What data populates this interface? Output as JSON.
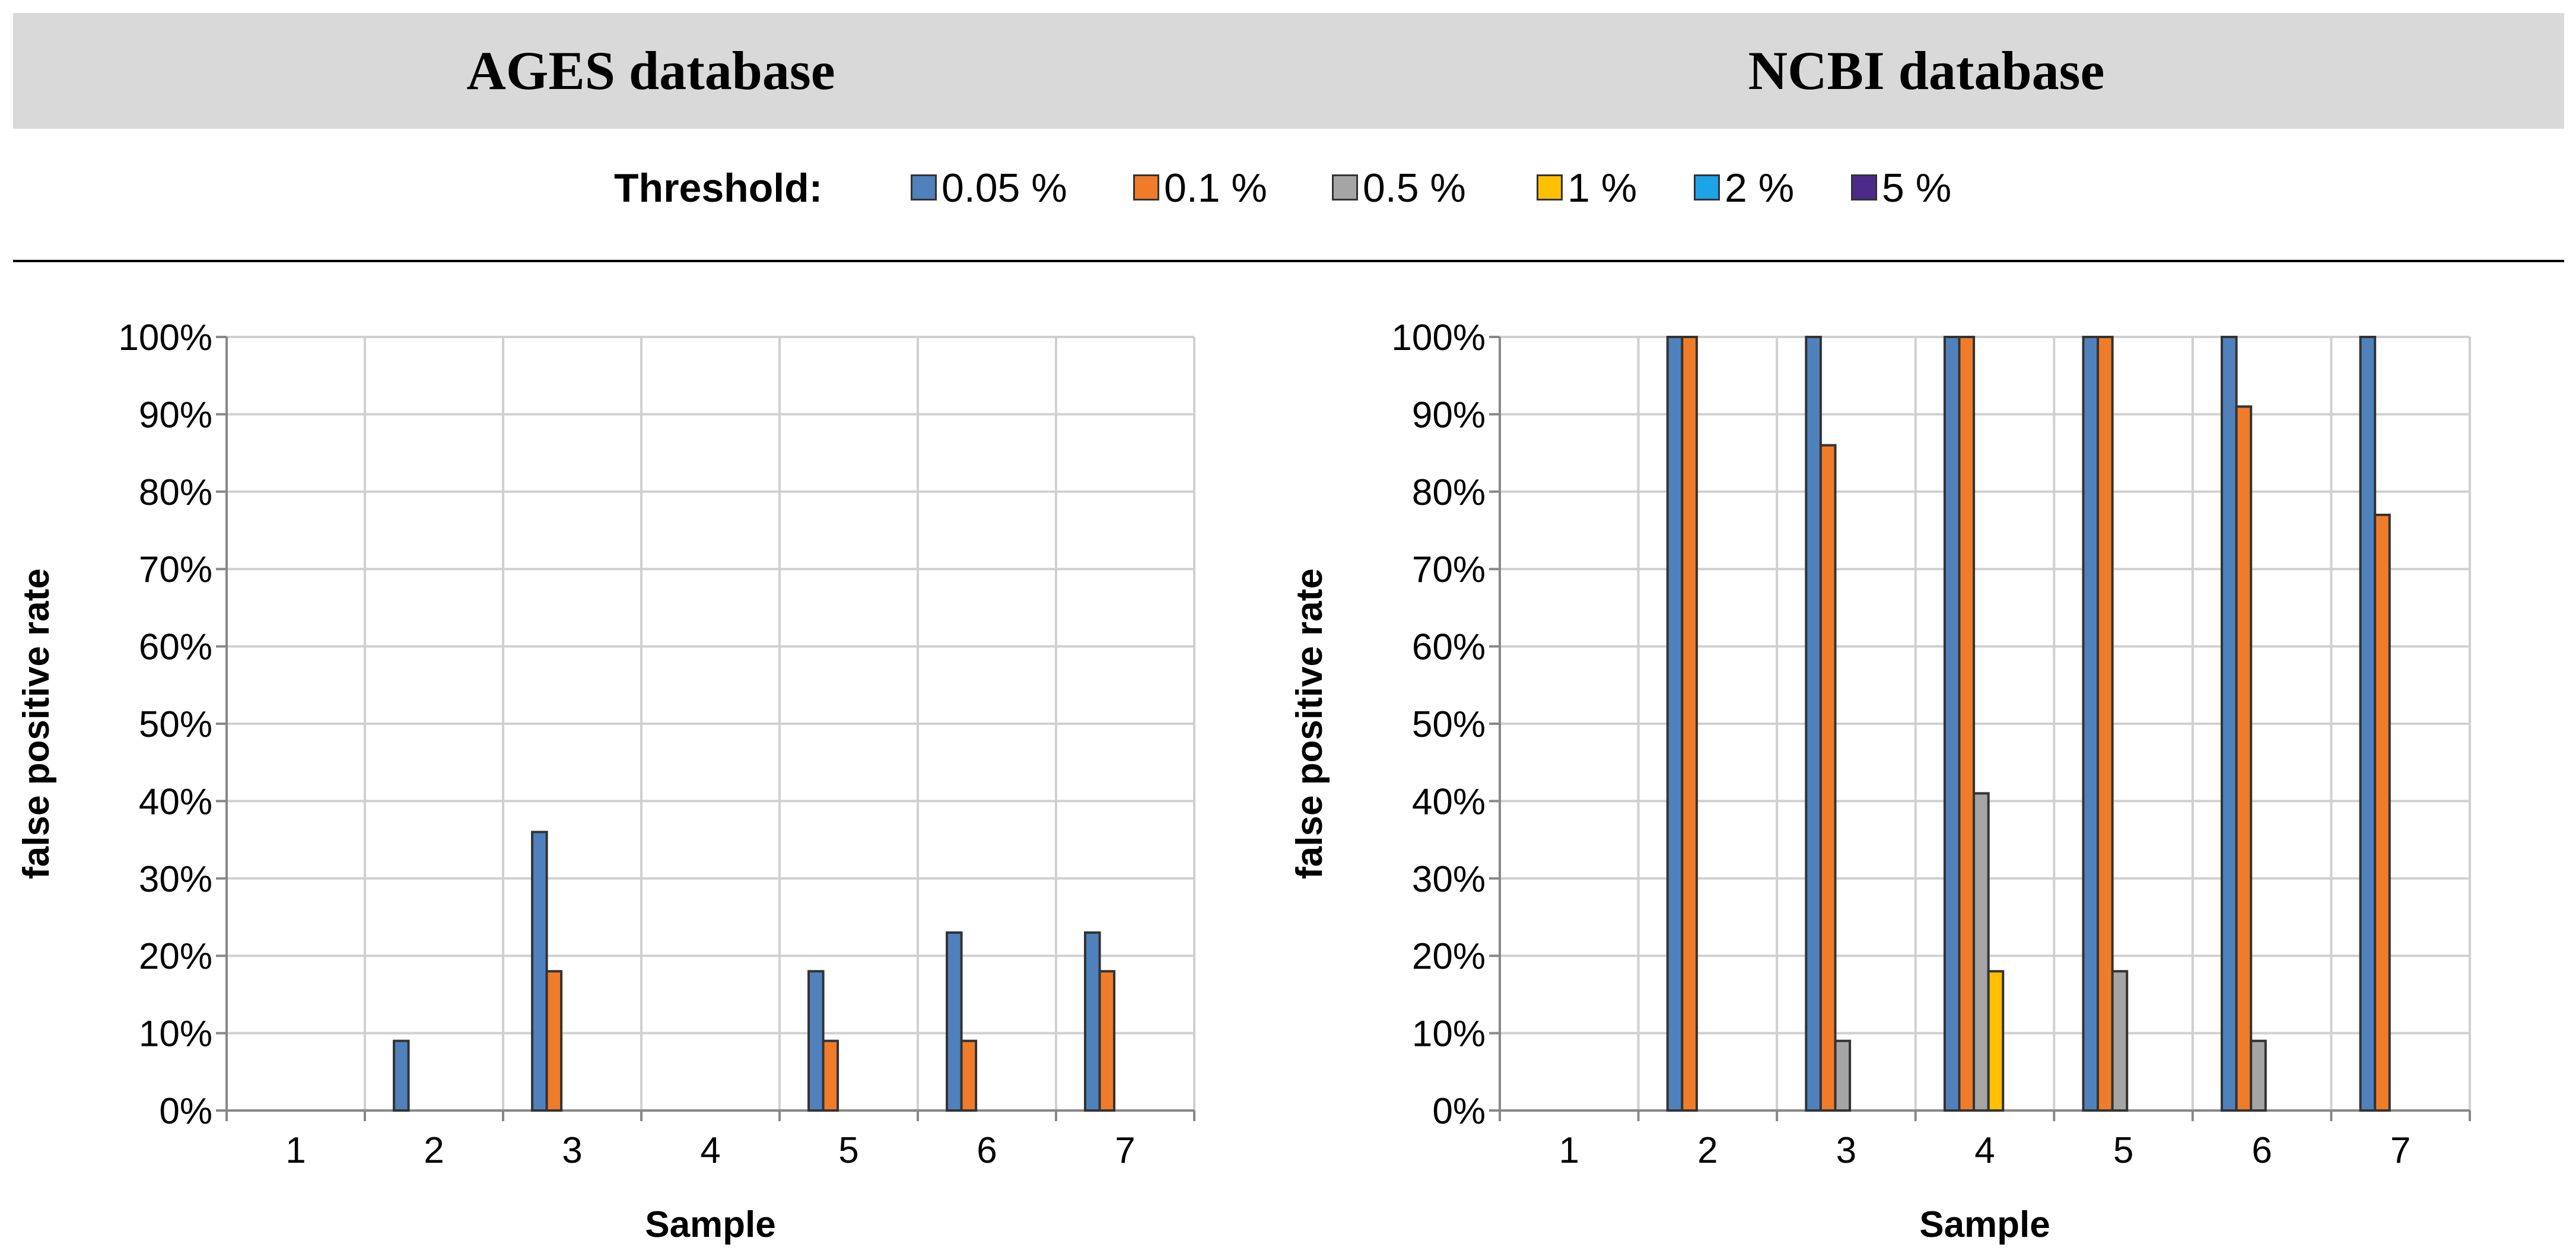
{
  "header": {
    "left_title": "AGES database",
    "right_title": "NCBI database"
  },
  "legend": {
    "label": "Threshold:",
    "items": [
      {
        "name": "0.05 %",
        "color": "#4f81bd"
      },
      {
        "name": "0.1 %",
        "color": "#f07c2a"
      },
      {
        "name": "0.5 %",
        "color": "#a5a5a5"
      },
      {
        "name": "1 %",
        "color": "#ffc000"
      },
      {
        "name": "2 %",
        "color": "#1ca3e8"
      },
      {
        "name": "5 %",
        "color": "#4b2a8c"
      }
    ]
  },
  "chart_data": [
    {
      "type": "bar",
      "panel": "AGES database",
      "categories": [
        "1",
        "2",
        "3",
        "4",
        "5",
        "6",
        "7"
      ],
      "series": [
        {
          "name": "0.05 %",
          "values": [
            0,
            9,
            36,
            0,
            18,
            23,
            23
          ]
        },
        {
          "name": "0.1 %",
          "values": [
            0,
            0,
            18,
            0,
            9,
            9,
            18
          ]
        },
        {
          "name": "0.5 %",
          "values": [
            0,
            0,
            0,
            0,
            0,
            0,
            0
          ]
        },
        {
          "name": "1 %",
          "values": [
            0,
            0,
            0,
            0,
            0,
            0,
            0
          ]
        },
        {
          "name": "2 %",
          "values": [
            0,
            0,
            0,
            0,
            0,
            0,
            0
          ]
        },
        {
          "name": "5 %",
          "values": [
            0,
            0,
            0,
            0,
            0,
            0,
            0
          ]
        }
      ],
      "xlabel": "Sample",
      "ylabel": "false positive rate",
      "ylim": [
        0,
        100
      ],
      "yticks": [
        "0%",
        "10%",
        "20%",
        "30%",
        "40%",
        "50%",
        "60%",
        "70%",
        "80%",
        "90%",
        "100%"
      ],
      "grid": true
    },
    {
      "type": "bar",
      "panel": "NCBI database",
      "categories": [
        "1",
        "2",
        "3",
        "4",
        "5",
        "6",
        "7"
      ],
      "series": [
        {
          "name": "0.05 %",
          "values": [
            0,
            100,
            100,
            100,
            100,
            100,
            100
          ]
        },
        {
          "name": "0.1 %",
          "values": [
            0,
            100,
            86,
            100,
            100,
            91,
            77
          ]
        },
        {
          "name": "0.5 %",
          "values": [
            0,
            0,
            9,
            41,
            18,
            9,
            0
          ]
        },
        {
          "name": "1 %",
          "values": [
            0,
            0,
            0,
            18,
            0,
            0,
            0
          ]
        },
        {
          "name": "2 %",
          "values": [
            0,
            0,
            0,
            0,
            0,
            0,
            0
          ]
        },
        {
          "name": "5 %",
          "values": [
            0,
            0,
            0,
            0,
            0,
            0,
            0
          ]
        }
      ],
      "xlabel": "Sample",
      "ylabel": "false positive rate",
      "ylim": [
        0,
        100
      ],
      "yticks": [
        "0%",
        "10%",
        "20%",
        "30%",
        "40%",
        "50%",
        "60%",
        "70%",
        "80%",
        "90%",
        "100%"
      ],
      "grid": true
    }
  ]
}
